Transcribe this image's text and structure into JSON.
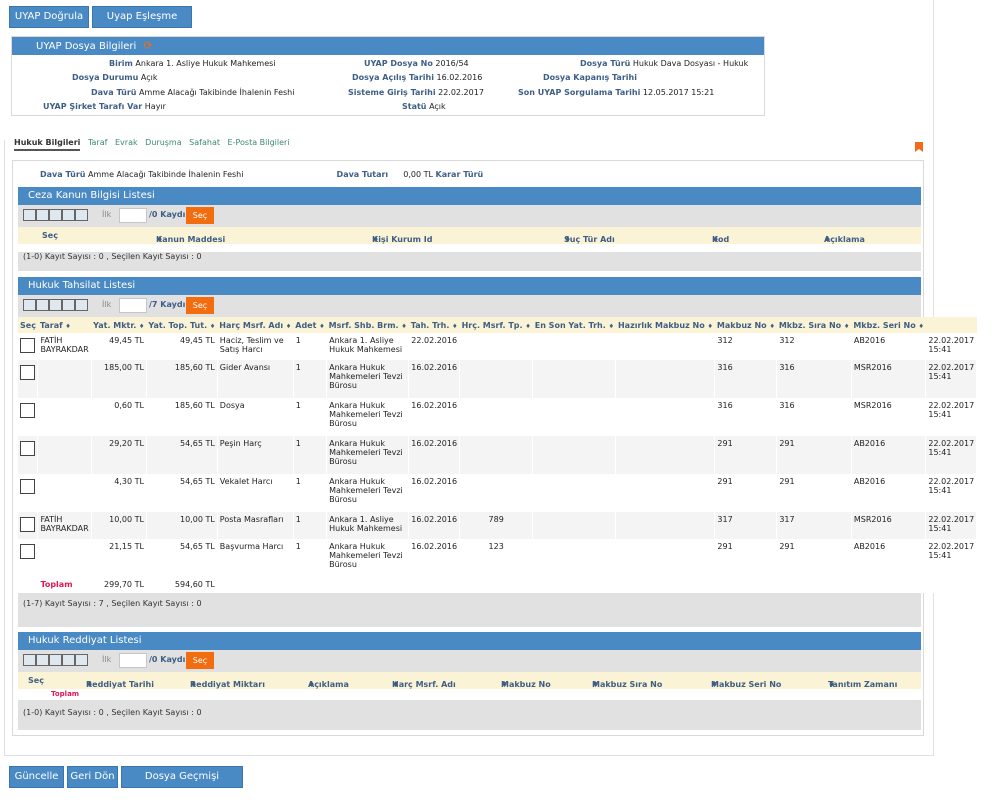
{
  "top_buttons": {
    "uyap_dogrula": "UYAP Doğrula",
    "uyap_eslesme": "Uyap Eşleşme İptali"
  },
  "dosya_bilgileri": {
    "title": "UYAP Dosya Bilgileri",
    "birim_label": "Birim",
    "birim": "Ankara 1. Asliye Hukuk Mahkemesi",
    "dosya_no_label": "UYAP Dosya No",
    "dosya_no": "2016/54",
    "dosya_turu_label": "Dosya Türü",
    "dosya_turu": "Hukuk Dava Dosyası - Hukuk",
    "durum_label": "Dosya Durumu",
    "durum": "Açık",
    "acilis_label": "Dosya Açılış Tarihi",
    "acilis": "16.02.2016",
    "kapanis_label": "Dosya Kapanış Tarihi",
    "kapanis": "",
    "dava_turu_label": "Dava Türü",
    "dava_turu": "Amme Alacağı Takibinde İhalenin Feshi",
    "sistem_giris_label": "Sisteme Giriş Tarihi",
    "sistem_giris": "22.02.2017",
    "son_sorgulama_label": "Son UYAP Sorgulama Tarihi",
    "son_sorgulama": "12.05.2017 15:21",
    "sirket_label": "UYAP Şirket Tarafı Var",
    "sirket": "Hayır",
    "statu_label": "Statü",
    "statu": "Açık"
  },
  "tabs": [
    "Hukuk Bilgileri",
    "Taraf",
    "Evrak",
    "Duruşma",
    "Safahat",
    "E-Posta Bilgileri"
  ],
  "summary": {
    "dava_turu_label": "Dava Türü",
    "dava_turu": "Amme Alacağı Takibinde İhalenin Feshi",
    "dava_tutari_label": "Dava Tutarı",
    "dava_tutari": "0,00 TL",
    "karar_turu_label": "Karar Türü"
  },
  "ceza": {
    "title": "Ceza Kanun Bilgisi Listesi",
    "ilk": "İlk",
    "kayit": "/0 Kaydı",
    "sec": "Seç",
    "columns": [
      "Seç",
      "Kanun Maddesi",
      "Kişi Kurum Id",
      "Suç Tür Adı",
      "Kod",
      "Açıklama"
    ],
    "footer": "(1-0) Kayıt Sayısı : 0 , Seçilen Kayıt Sayısı : 0"
  },
  "tahsilat": {
    "title": "Hukuk Tahsilat Listesi",
    "ilk": "İlk",
    "kayit": "/7 Kaydı",
    "sec": "Seç",
    "columns": [
      "Seç",
      "Taraf",
      "Yat. Mktr.",
      "Yat. Top. Tut.",
      "Harç Msrf. Adı",
      "Adet",
      "Msrf. Shb. Brm.",
      "Tah. Trh.",
      "Hrç. Msrf. Tp.",
      "En Son Yat. Trh.",
      "Hazırlık Makbuz No",
      "Makbuz No",
      "Mkbz. Sıra No",
      "Mkbz. Seri No"
    ],
    "rows": [
      {
        "taraf": "FATİH BAYRAKDAR",
        "yat": "49,45 TL",
        "top": "49,45 TL",
        "harc": "Haciz, Teslim ve Satış Harcı",
        "adet": "1",
        "brm": "Ankara 1. Asliye Hukuk Mahkemesi",
        "tah": "22.02.2016",
        "tp": "",
        "enson": "",
        "hazirlik": "",
        "makbuz": "312",
        "sira": "312",
        "seri": "AB2016",
        "zaman": "22.02.2017 15:41"
      },
      {
        "taraf": "",
        "yat": "185,00 TL",
        "top": "185,60 TL",
        "harc": "Gider Avansı",
        "adet": "1",
        "brm": "Ankara Hukuk Mahkemeleri Tevzi Bürosu",
        "tah": "16.02.2016",
        "tp": "",
        "enson": "",
        "hazirlik": "",
        "makbuz": "316",
        "sira": "316",
        "seri": "MSR2016",
        "zaman": "22.02.2017 15:41"
      },
      {
        "taraf": "",
        "yat": "0,60 TL",
        "top": "185,60 TL",
        "harc": "Dosya",
        "adet": "1",
        "brm": "Ankara Hukuk Mahkemeleri Tevzi Bürosu",
        "tah": "16.02.2016",
        "tp": "",
        "enson": "",
        "hazirlik": "",
        "makbuz": "316",
        "sira": "316",
        "seri": "MSR2016",
        "zaman": "22.02.2017 15:41"
      },
      {
        "taraf": "",
        "yat": "29,20 TL",
        "top": "54,65 TL",
        "harc": "Peşin Harç",
        "adet": "1",
        "brm": "Ankara Hukuk Mahkemeleri Tevzi Bürosu",
        "tah": "16.02.2016",
        "tp": "",
        "enson": "",
        "hazirlik": "",
        "makbuz": "291",
        "sira": "291",
        "seri": "AB2016",
        "zaman": "22.02.2017 15:41"
      },
      {
        "taraf": "",
        "yat": "4,30 TL",
        "top": "54,65 TL",
        "harc": "Vekalet Harcı",
        "adet": "1",
        "brm": "Ankara Hukuk Mahkemeleri Tevzi Bürosu",
        "tah": "16.02.2016",
        "tp": "",
        "enson": "",
        "hazirlik": "",
        "makbuz": "291",
        "sira": "291",
        "seri": "AB2016",
        "zaman": "22.02.2017 15:41"
      },
      {
        "taraf": "FATİH BAYRAKDAR",
        "yat": "10,00 TL",
        "top": "10,00 TL",
        "harc": "Posta Masrafları",
        "adet": "1",
        "brm": "Ankara 1. Asliye Hukuk Mahkemesi",
        "tah": "16.02.2016",
        "tp": "789",
        "enson": "",
        "hazirlik": "",
        "makbuz": "317",
        "sira": "317",
        "seri": "MSR2016",
        "zaman": "22.02.2017 15:41"
      },
      {
        "taraf": "",
        "yat": "21,15 TL",
        "top": "54,65 TL",
        "harc": "Başvurma Harcı",
        "adet": "1",
        "brm": "Ankara Hukuk Mahkemeleri Tevzi Bürosu",
        "tah": "16.02.2016",
        "tp": "123",
        "enson": "",
        "hazirlik": "",
        "makbuz": "291",
        "sira": "291",
        "seri": "AB2016",
        "zaman": "22.02.2017 15:41"
      }
    ],
    "toplam_label": "Toplam",
    "toplam_yat": "299,70 TL",
    "toplam_top": "594,60 TL",
    "footer": "(1-7) Kayıt Sayısı : 7 , Seçilen Kayıt Sayısı : 0"
  },
  "reddiyat": {
    "title": "Hukuk Reddiyat Listesi",
    "ilk": "İlk",
    "kayit": "/0 Kaydı",
    "sec": "Seç",
    "columns": [
      "Seç",
      "Reddiyat Tarihi",
      "Reddiyat Miktarı",
      "Açıklama",
      "Harç Msrf. Adı",
      "Makbuz No",
      "Makbuz Sıra No",
      "Makbuz Seri No",
      "Tanıtım Zamanı"
    ],
    "toplam_label": "Toplam",
    "footer": "(1-0) Kayıt Sayısı : 0 , Seçilen Kayıt Sayısı : 0"
  },
  "bottom_buttons": {
    "guncelle": "Güncelle",
    "geri_don": "Geri Dön",
    "gecmis": "Dosya Geçmişi Görüntüle"
  },
  "icons": {
    "sort_arrow": "♦",
    "refresh": "refresh-icon",
    "bookmark": "bookmark-icon"
  },
  "colors": {
    "header_blue": "#4a8ac4",
    "orange": "#f26d10",
    "label_blue": "#3e5e86",
    "toplam_pink": "#e0184f"
  }
}
